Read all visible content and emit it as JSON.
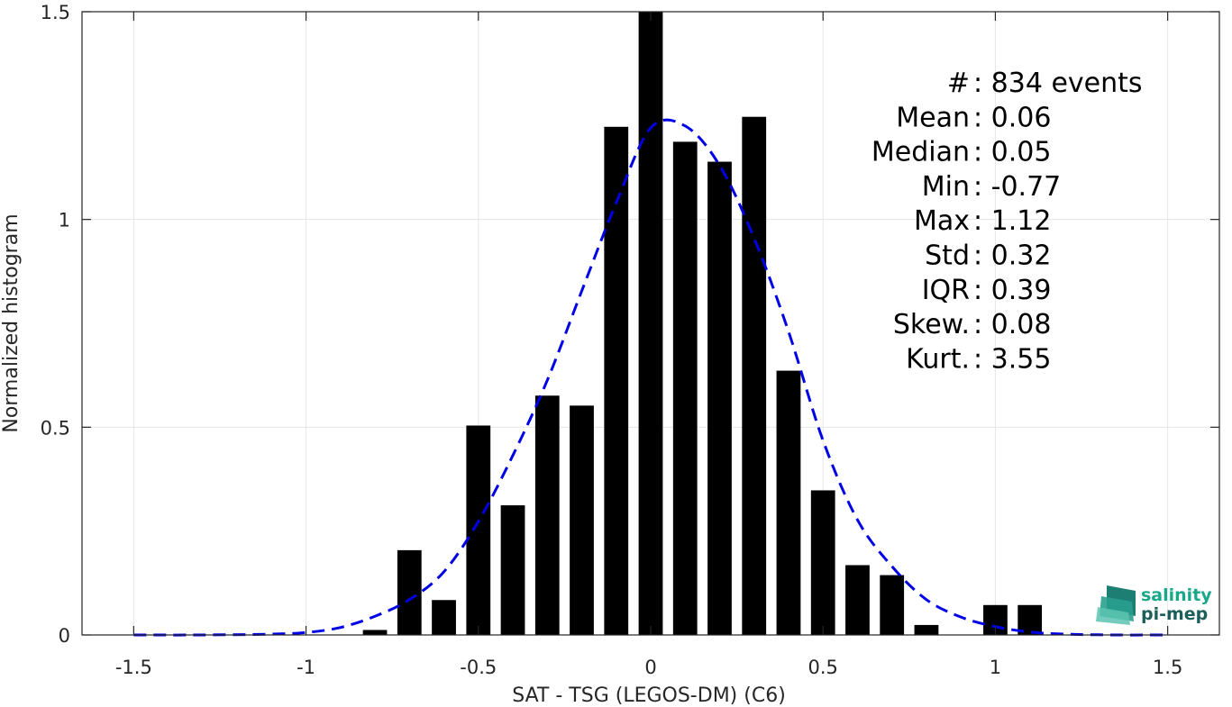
{
  "chart_data": {
    "type": "bar",
    "xlabel": "SAT - TSG (LEGOS-DM) (C6)",
    "ylabel": "Normalized histogram",
    "xlim": [
      -1.65,
      1.65
    ],
    "ylim": [
      0,
      1.5
    ],
    "grid": true,
    "x_ticks": [
      -1.5,
      -1,
      -0.5,
      0,
      0.5,
      1,
      1.5
    ],
    "x_tick_labels": [
      "-1.5",
      "-1",
      "-0.5",
      "0",
      "0.5",
      "1",
      "1.5"
    ],
    "y_ticks": [
      0,
      0.5,
      1,
      1.5
    ],
    "y_tick_labels": [
      "0",
      "0.5",
      "1",
      "1.5"
    ],
    "bar_width": 0.07,
    "bars": [
      {
        "x": -0.8,
        "y": 0.012
      },
      {
        "x": -0.7,
        "y": 0.204
      },
      {
        "x": -0.6,
        "y": 0.084
      },
      {
        "x": -0.5,
        "y": 0.504
      },
      {
        "x": -0.4,
        "y": 0.312
      },
      {
        "x": -0.3,
        "y": 0.576
      },
      {
        "x": -0.2,
        "y": 0.552
      },
      {
        "x": -0.1,
        "y": 1.223
      },
      {
        "x": 0.0,
        "y": 1.5
      },
      {
        "x": 0.1,
        "y": 1.187
      },
      {
        "x": 0.2,
        "y": 1.139
      },
      {
        "x": 0.3,
        "y": 1.247
      },
      {
        "x": 0.4,
        "y": 0.636
      },
      {
        "x": 0.5,
        "y": 0.348
      },
      {
        "x": 0.6,
        "y": 0.168
      },
      {
        "x": 0.7,
        "y": 0.144
      },
      {
        "x": 0.8,
        "y": 0.024
      },
      {
        "x": 1.0,
        "y": 0.072
      },
      {
        "x": 1.1,
        "y": 0.072
      }
    ],
    "fit_curve": {
      "style": "dashed",
      "color": "#0000e6",
      "points": [
        [
          -1.5,
          0.0
        ],
        [
          -1.3,
          0.0
        ],
        [
          -1.1,
          0.002
        ],
        [
          -1.0,
          0.006
        ],
        [
          -0.9,
          0.018
        ],
        [
          -0.8,
          0.045
        ],
        [
          -0.7,
          0.085
        ],
        [
          -0.6,
          0.152
        ],
        [
          -0.5,
          0.273
        ],
        [
          -0.4,
          0.432
        ],
        [
          -0.3,
          0.613
        ],
        [
          -0.2,
          0.828
        ],
        [
          -0.1,
          1.04
        ],
        [
          0.0,
          1.22
        ],
        [
          0.1,
          1.225
        ],
        [
          0.2,
          1.13
        ],
        [
          0.3,
          0.955
        ],
        [
          0.4,
          0.73
        ],
        [
          0.5,
          0.468
        ],
        [
          0.6,
          0.277
        ],
        [
          0.7,
          0.165
        ],
        [
          0.8,
          0.085
        ],
        [
          0.9,
          0.043
        ],
        [
          1.0,
          0.02
        ],
        [
          1.1,
          0.007
        ],
        [
          1.2,
          0.002
        ],
        [
          1.35,
          0.0
        ],
        [
          1.5,
          0.0
        ]
      ]
    },
    "stats_lines": [
      "#  : 834 events",
      "Mean : 0.06",
      "Median : 0.05",
      "Min : -0.77",
      "Max : 1.12",
      "Std : 0.32",
      "IQR : 0.39",
      "Skew. : 0.08",
      "Kurt. : 3.55"
    ]
  },
  "logo": {
    "line1": "salinity",
    "line2": "pi-mep",
    "color_line1": "#1aa88a",
    "color_line2": "#1b5f5a"
  },
  "colors": {
    "bar": "#000000",
    "grid": "#e6e6e6",
    "axis": "#262626"
  }
}
